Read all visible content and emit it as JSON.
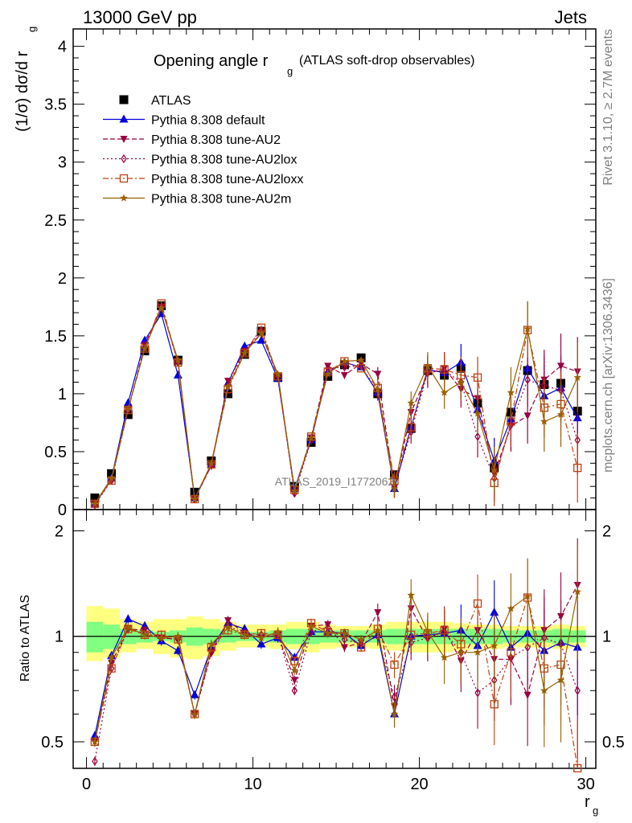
{
  "header": {
    "left": "13000 GeV pp",
    "right": "Jets"
  },
  "side": {
    "rivet": "Rivet 3.1.10, ≥ 2.7M events",
    "mcplots": "mcplots.cern.ch [arXiv:1306.3436]"
  },
  "watermark": "ATLAS_2019_I1772062",
  "colors": {
    "data": "#000000",
    "default": "#0000dd",
    "au2": "#990040",
    "au2lox": "#990040",
    "au2loxx": "#c04010",
    "au2m": "#996000",
    "band_green": "#80ff80",
    "band_yellow": "#ffff80"
  },
  "chart_data": [
    {
      "type": "scatter",
      "title_main": "Opening angle r",
      "title_sub": "g",
      "title_rest": "(ATLAS soft-drop observables)",
      "ylabel_main": "(1/σ) dσ/d r",
      "ylabel_sub": "g",
      "ylim": [
        0,
        4.15
      ],
      "xlim": [
        -0.8,
        30.6
      ],
      "yticks": [
        "0",
        "0.5",
        "1",
        "1.5",
        "2",
        "2.5",
        "3",
        "3.5",
        "4"
      ],
      "legend_position": "top-left",
      "x": [
        0.5,
        1.5,
        2.5,
        3.5,
        4.5,
        5.5,
        6.5,
        7.5,
        8.5,
        9.5,
        10.5,
        11.5,
        12.5,
        13.5,
        14.5,
        15.5,
        16.5,
        17.5,
        18.5,
        19.5,
        20.5,
        21.5,
        22.5,
        23.5,
        24.5,
        25.5,
        26.5,
        27.5,
        28.5,
        29.5
      ],
      "series": [
        {
          "key": "atlas",
          "name": "ATLAS",
          "marker": "square",
          "line": "none",
          "values": [
            0.1,
            0.31,
            0.82,
            1.37,
            1.76,
            1.29,
            0.15,
            0.42,
            1.0,
            1.34,
            1.54,
            1.14,
            0.2,
            0.58,
            1.15,
            1.25,
            1.31,
            1.0,
            0.3,
            0.7,
            1.2,
            1.16,
            1.22,
            0.92,
            0.36,
            0.84,
            1.2,
            1.08,
            1.09,
            0.85
          ]
        },
        {
          "key": "default",
          "name": "Pythia 8.308 default",
          "marker": "triangle-up",
          "line": "solid",
          "values": [
            0.05,
            0.27,
            0.92,
            1.46,
            1.69,
            1.16,
            0.1,
            0.39,
            1.09,
            1.41,
            1.46,
            1.13,
            0.18,
            0.6,
            1.19,
            1.27,
            1.23,
            1.01,
            0.18,
            0.71,
            1.21,
            1.18,
            1.27,
            0.86,
            0.42,
            0.78,
            1.22,
            0.98,
            1.05,
            0.79
          ]
        },
        {
          "key": "au2",
          "name": "Pythia 8.308 tune-AU2",
          "marker": "triangle-down",
          "line": "dashed",
          "values": [
            0.05,
            0.26,
            0.86,
            1.42,
            1.75,
            1.27,
            0.09,
            0.38,
            1.11,
            1.37,
            1.52,
            1.15,
            0.15,
            0.62,
            1.24,
            1.16,
            1.26,
            1.17,
            0.19,
            0.84,
            1.17,
            1.22,
            1.04,
            0.96,
            0.31,
            0.72,
            0.81,
            1.12,
            1.24,
            1.19
          ]
        },
        {
          "key": "au2lox",
          "name": "Pythia 8.308 tune-AU2lox",
          "marker": "diamond-open",
          "line": "dotted",
          "values": [
            0.04,
            0.25,
            0.86,
            1.4,
            1.75,
            1.27,
            0.09,
            0.38,
            1.07,
            1.36,
            1.55,
            1.15,
            0.14,
            0.6,
            1.22,
            1.23,
            1.24,
            1.0,
            0.2,
            0.67,
            1.19,
            1.2,
            1.1,
            0.63,
            0.27,
            0.73,
            1.12,
            1.07,
            1.03,
            0.6
          ]
        },
        {
          "key": "au2loxx",
          "name": "Pythia 8.308 tune-AU2loxx",
          "marker": "square-open",
          "line": "dashdot",
          "values": [
            0.05,
            0.25,
            0.86,
            1.39,
            1.78,
            1.27,
            0.09,
            0.39,
            1.04,
            1.35,
            1.57,
            1.15,
            0.17,
            0.63,
            1.19,
            1.28,
            1.22,
            1.05,
            0.25,
            0.71,
            1.22,
            1.21,
            1.16,
            1.14,
            0.23,
            0.76,
            1.55,
            0.88,
            0.91,
            0.36
          ]
        },
        {
          "key": "au2m",
          "name": "Pythia 8.308 tune-AU2m",
          "marker": "star",
          "line": "solid",
          "values": [
            0.05,
            0.27,
            0.87,
            1.39,
            1.74,
            1.29,
            0.09,
            0.4,
            1.06,
            1.35,
            1.52,
            1.17,
            0.16,
            0.62,
            1.17,
            1.28,
            1.29,
            1.04,
            0.18,
            0.92,
            1.24,
            1.01,
            1.1,
            0.83,
            0.34,
            1.01,
            1.56,
            0.76,
            0.82,
            1.14
          ]
        }
      ]
    },
    {
      "type": "scatter",
      "ylabel": "Ratio to ATLAS",
      "xlabel_main": "r",
      "xlabel_sub": "g",
      "ylim": [
        0.42,
        2.3
      ],
      "xlim": [
        -0.8,
        30.6
      ],
      "yscale": "log",
      "yticks": [
        "0.5",
        "1",
        "2"
      ],
      "xticks": [
        "0",
        "10",
        "20",
        "30"
      ],
      "reference_line": 1,
      "x": [
        0.5,
        1.5,
        2.5,
        3.5,
        4.5,
        5.5,
        6.5,
        7.5,
        8.5,
        9.5,
        10.5,
        11.5,
        12.5,
        13.5,
        14.5,
        15.5,
        16.5,
        17.5,
        18.5,
        19.5,
        20.5,
        21.5,
        22.5,
        23.5,
        24.5,
        25.5,
        26.5,
        27.5,
        28.5,
        29.5
      ],
      "band_green": [
        [
          0.9,
          1.1
        ],
        [
          0.92,
          1.08
        ],
        [
          0.95,
          1.05
        ],
        [
          0.96,
          1.04
        ],
        [
          0.97,
          1.03
        ],
        [
          0.96,
          1.04
        ],
        [
          0.94,
          1.06
        ],
        [
          0.95,
          1.05
        ],
        [
          0.96,
          1.04
        ],
        [
          0.97,
          1.03
        ],
        [
          0.97,
          1.03
        ],
        [
          0.96,
          1.04
        ],
        [
          0.95,
          1.05
        ],
        [
          0.95,
          1.05
        ],
        [
          0.96,
          1.04
        ],
        [
          0.96,
          1.04
        ],
        [
          0.96,
          1.04
        ],
        [
          0.96,
          1.04
        ],
        [
          0.95,
          1.05
        ],
        [
          0.95,
          1.05
        ],
        [
          0.95,
          1.05
        ],
        [
          0.95,
          1.05
        ],
        [
          0.95,
          1.05
        ],
        [
          0.95,
          1.05
        ],
        [
          0.95,
          1.05
        ],
        [
          0.96,
          1.04
        ],
        [
          0.96,
          1.04
        ],
        [
          0.96,
          1.04
        ],
        [
          0.95,
          1.05
        ],
        [
          0.96,
          1.04
        ]
      ],
      "band_yellow": [
        [
          0.85,
          1.22
        ],
        [
          0.87,
          1.2
        ],
        [
          0.9,
          1.12
        ],
        [
          0.92,
          1.1
        ],
        [
          0.89,
          1.12
        ],
        [
          0.87,
          1.12
        ],
        [
          0.86,
          1.14
        ],
        [
          0.88,
          1.12
        ],
        [
          0.91,
          1.1
        ],
        [
          0.93,
          1.08
        ],
        [
          0.93,
          1.08
        ],
        [
          0.92,
          1.08
        ],
        [
          0.92,
          1.1
        ],
        [
          0.9,
          1.1
        ],
        [
          0.92,
          1.08
        ],
        [
          0.93,
          1.07
        ],
        [
          0.93,
          1.07
        ],
        [
          0.92,
          1.08
        ],
        [
          0.91,
          1.1
        ],
        [
          0.9,
          1.1
        ],
        [
          0.9,
          1.1
        ],
        [
          0.9,
          1.1
        ],
        [
          0.91,
          1.09
        ],
        [
          0.92,
          1.08
        ],
        [
          0.92,
          1.08
        ],
        [
          0.93,
          1.07
        ],
        [
          0.93,
          1.07
        ],
        [
          0.93,
          1.07
        ],
        [
          0.92,
          1.08
        ],
        [
          0.93,
          1.07
        ]
      ],
      "series": [
        {
          "key": "default",
          "values": [
            0.52,
            0.88,
            1.12,
            1.07,
            0.97,
            0.91,
            0.68,
            0.93,
            1.09,
            1.05,
            0.95,
            0.99,
            0.87,
            1.03,
            1.03,
            1.02,
            0.94,
            1.01,
            0.6,
            1.0,
            1.01,
            1.02,
            1.04,
            0.94,
            1.17,
            0.93,
            1.02,
            0.91,
            0.96,
            0.93
          ]
        },
        {
          "key": "au2",
          "values": [
            0.5,
            0.84,
            1.05,
            1.04,
            0.99,
            0.98,
            0.6,
            0.9,
            1.11,
            1.02,
            0.99,
            1.01,
            0.75,
            1.07,
            1.08,
            0.93,
            0.96,
            1.17,
            0.63,
            1.2,
            0.98,
            1.05,
            0.85,
            1.04,
            0.86,
            0.86,
            0.68,
            1.04,
            1.14,
            1.4
          ]
        },
        {
          "key": "au2lox",
          "values": [
            0.44,
            0.81,
            1.05,
            1.02,
            0.99,
            0.98,
            0.6,
            0.9,
            1.07,
            1.02,
            1.01,
            1.01,
            0.7,
            1.03,
            1.06,
            0.98,
            0.95,
            1.0,
            0.67,
            0.96,
            0.99,
            1.03,
            0.9,
            0.69,
            0.75,
            0.87,
            0.93,
            0.99,
            0.95,
            0.7
          ]
        },
        {
          "key": "au2loxx",
          "values": [
            0.5,
            0.81,
            1.05,
            1.01,
            1.01,
            0.98,
            0.6,
            0.93,
            1.04,
            1.01,
            1.02,
            1.01,
            0.85,
            1.09,
            1.03,
            1.02,
            0.93,
            1.05,
            0.83,
            1.01,
            1.02,
            1.04,
            0.95,
            1.24,
            0.64,
            0.9,
            1.29,
            0.81,
            0.83,
            0.42
          ]
        },
        {
          "key": "au2m",
          "values": [
            0.5,
            0.87,
            1.06,
            1.01,
            0.99,
            1.0,
            0.6,
            0.95,
            1.06,
            1.01,
            0.99,
            1.03,
            0.8,
            1.07,
            1.02,
            1.02,
            0.98,
            1.04,
            0.6,
            1.31,
            1.03,
            0.87,
            0.9,
            0.9,
            0.94,
            1.2,
            1.3,
            0.7,
            0.75,
            1.34
          ]
        }
      ]
    }
  ]
}
